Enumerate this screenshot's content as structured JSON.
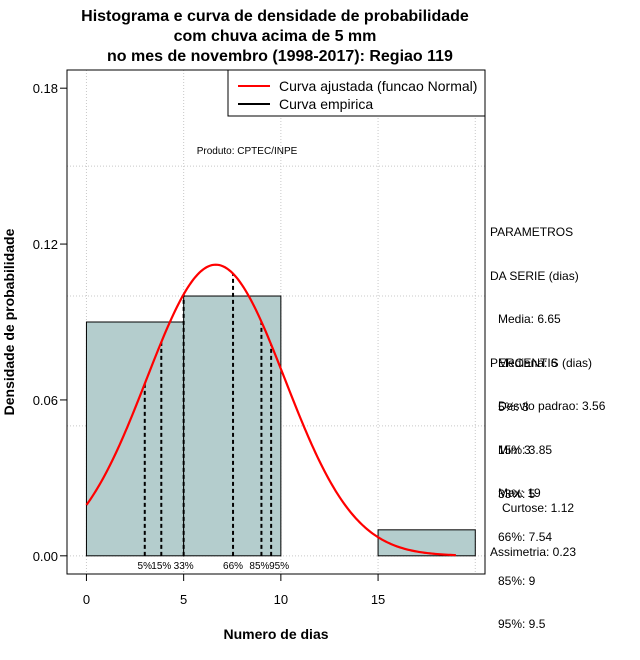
{
  "chart_data": {
    "type": "histogram",
    "title": [
      "Histograma e curva de densidade de probabilidade",
      "com chuva acima de 5 mm",
      "no mes de novembro (1998-2017): Regiao 119"
    ],
    "xlabel": "Numero de dias",
    "ylabel": "Densidade de probabilidade",
    "xlim": [
      -1,
      20.5
    ],
    "ylim": [
      -0.007,
      0.187
    ],
    "x_ticks": [
      0,
      5,
      10,
      15
    ],
    "x_tick_labels": [
      "0",
      "5",
      "10",
      "15"
    ],
    "y_ticks": [
      0.0,
      0.06,
      0.12,
      0.18
    ],
    "y_tick_labels": [
      "0.00",
      "0.06",
      "0.12",
      "0.18"
    ],
    "h_gridlines": [
      0.0,
      0.05,
      0.1,
      0.15
    ],
    "v_gridlines": [
      0,
      5,
      10,
      15,
      20
    ],
    "bins": [
      {
        "x0": 0,
        "x1": 5,
        "density": 0.09
      },
      {
        "x0": 5,
        "x1": 10,
        "density": 0.1
      },
      {
        "x0": 10,
        "x1": 15,
        "density": 0.0
      },
      {
        "x0": 15,
        "x1": 20,
        "density": 0.01
      }
    ],
    "bar_color": "#b4cdcd",
    "normal_curve": {
      "name": "Curva ajustada (funcao Normal)",
      "mean": 6.65,
      "sd": 3.56,
      "x_range": [
        0,
        19
      ],
      "color": "#ff0000"
    },
    "empirical_curve": {
      "name": "Curva empirica",
      "color": "#000000"
    },
    "percentile_lines": [
      {
        "label": "5%",
        "x": 3
      },
      {
        "label": "15%",
        "x": 3.85
      },
      {
        "label": "33%",
        "x": 5
      },
      {
        "label": "66%",
        "x": 7.54
      },
      {
        "label": "85%",
        "x": 9
      },
      {
        "label": "95%",
        "x": 9.5
      }
    ],
    "legend": [
      "Curva ajustada (funcao Normal)",
      "Curva empirica"
    ],
    "legend_position": "top-right",
    "annotation": "Produto: CPTEC/INPE"
  },
  "panel": {
    "params_title_1": "PARAMETROS",
    "params_title_2": "DA SERIE (dias)",
    "media": "Media: 6.65",
    "mediana": "Mediana: 6",
    "desvio": "Desvio padrao: 3.56",
    "min": "Min: 3",
    "max": "Max: 19",
    "perc_title": "PERCENTIS (dias)",
    "p5": "5%: 3",
    "p15": "15%: 3.85",
    "p33": "33%: 5",
    "p66": "66%: 7.54",
    "p85": "85%: 9",
    "p95": "95%: 9.5",
    "curtose": "Curtose: 1.12",
    "assimetria": "Assimetria: 0.23"
  }
}
